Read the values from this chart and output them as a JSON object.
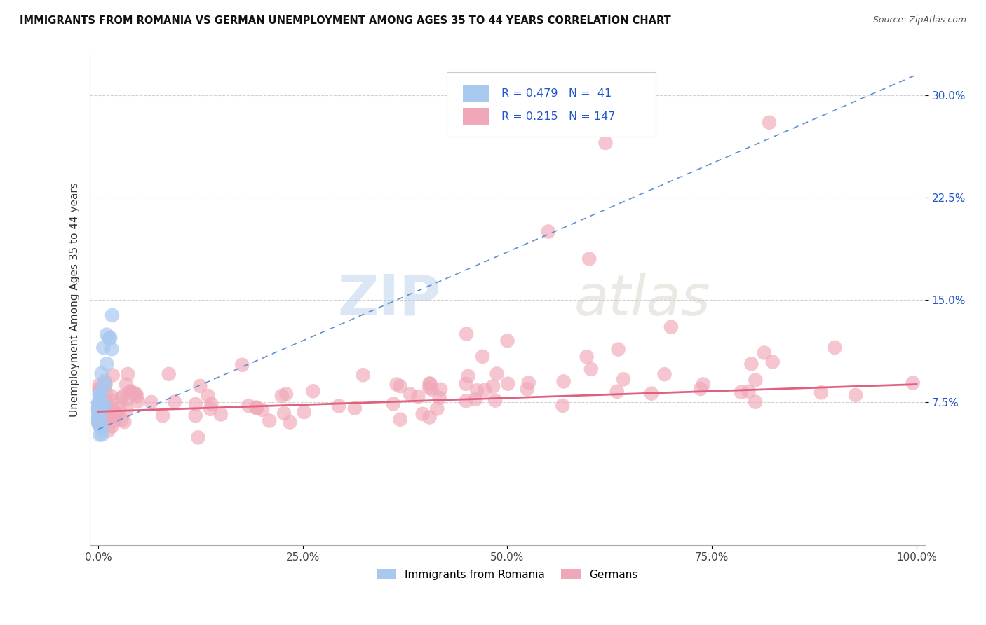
{
  "title": "IMMIGRANTS FROM ROMANIA VS GERMAN UNEMPLOYMENT AMONG AGES 35 TO 44 YEARS CORRELATION CHART",
  "source": "Source: ZipAtlas.com",
  "ylabel": "Unemployment Among Ages 35 to 44 years",
  "xlim": [
    -1,
    101
  ],
  "ylim": [
    -3,
    33
  ],
  "ytick_vals": [
    7.5,
    15.0,
    22.5,
    30.0
  ],
  "ytick_labels": [
    "7.5%",
    "15.0%",
    "22.5%",
    "30.0%"
  ],
  "xtick_vals": [
    0,
    25,
    50,
    75,
    100
  ],
  "xtick_labels": [
    "0.0%",
    "25.0%",
    "50.0%",
    "75.0%",
    "100.0%"
  ],
  "blue_R": 0.479,
  "blue_N": 41,
  "pink_R": 0.215,
  "pink_N": 147,
  "blue_color": "#a8c8f0",
  "pink_color": "#f0a8b8",
  "blue_trend_color": "#6090d0",
  "pink_trend_color": "#e06080",
  "watermark_zip": "ZIP",
  "watermark_atlas": "atlas",
  "legend_label_blue": "Immigrants from Romania",
  "legend_label_pink": "Germans",
  "blue_trend_x0": 0.0,
  "blue_trend_y0": 5.5,
  "blue_trend_x1": 100.0,
  "blue_trend_y1": 31.5,
  "pink_trend_x0": 0.0,
  "pink_trend_y0": 6.8,
  "pink_trend_x1": 100.0,
  "pink_trend_y1": 8.8
}
